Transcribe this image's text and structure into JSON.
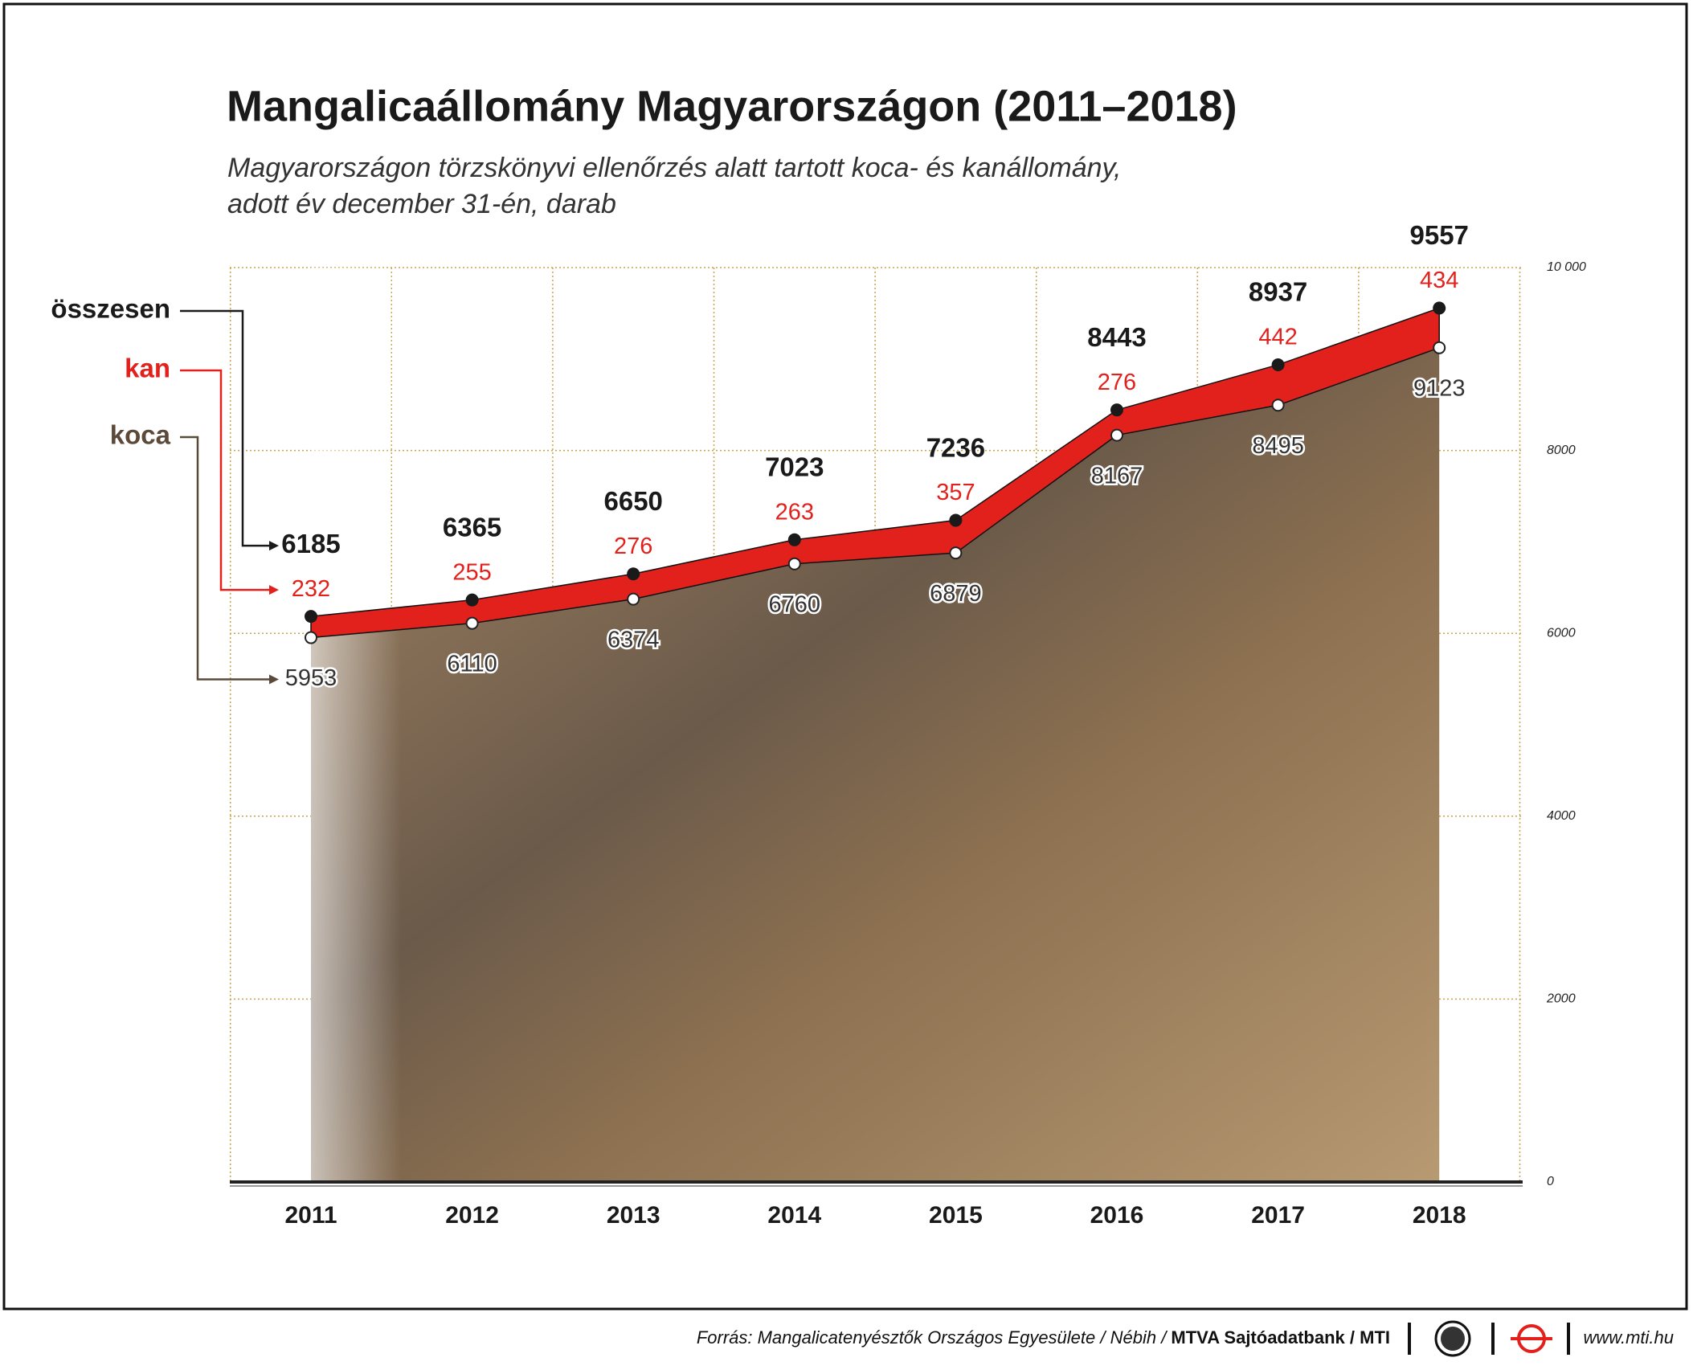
{
  "chart_data": {
    "type": "area",
    "title": "Mangalicaállomány Magyarországon (2011–2018)",
    "subtitle": [
      "Magyarországon törzskönyvi ellenőrzés alatt tartott koca- és kanállomány,",
      "adott év december 31-én, darab"
    ],
    "categories": [
      "2011",
      "2012",
      "2013",
      "2014",
      "2015",
      "2016",
      "2017",
      "2018"
    ],
    "series": [
      {
        "name": "összesen",
        "color": "#1a1a1a",
        "values": [
          6185,
          6365,
          6650,
          7023,
          7236,
          8443,
          8937,
          9557
        ]
      },
      {
        "name": "kan",
        "color": "#e3211c",
        "values": [
          232,
          255,
          276,
          263,
          357,
          276,
          442,
          434
        ]
      },
      {
        "name": "koca",
        "color": "#5b4a3a",
        "values": [
          5953,
          6110,
          6374,
          6760,
          6879,
          8167,
          8495,
          9123
        ]
      }
    ],
    "ylim": [
      0,
      10000
    ],
    "yticks": [
      0,
      2000,
      4000,
      6000,
      8000,
      {
        "value": 10000,
        "label": "10 000"
      }
    ],
    "grid": true
  },
  "footer": {
    "source": "Forrás: Mangalicatenyésztők Országos Egyesülete / Nébih / ",
    "agency": "MTVA Sajtóadatbank / MTI",
    "url": "www.mti.hu"
  }
}
